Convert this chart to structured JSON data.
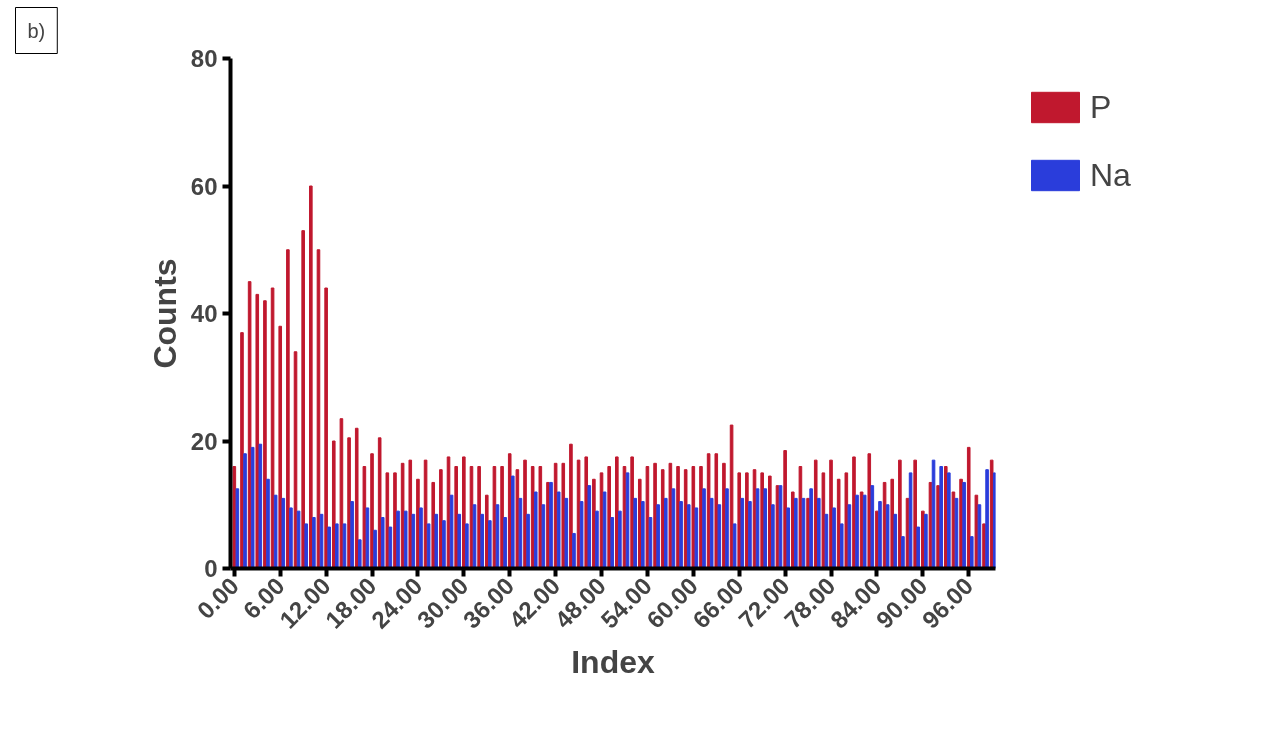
{
  "chart_data": {
    "type": "bar",
    "xlabel": "Index",
    "ylabel": "Counts",
    "annotations": [
      "b)"
    ],
    "x": [
      0,
      1,
      2,
      3,
      4,
      5,
      6,
      7,
      8,
      9,
      10,
      11,
      12,
      13,
      14,
      15,
      16,
      17,
      18,
      19,
      20,
      21,
      22,
      23,
      24,
      25,
      26,
      27,
      28,
      29,
      30,
      31,
      32,
      33,
      34,
      35,
      36,
      37,
      38,
      39,
      40,
      41,
      42,
      43,
      44,
      45,
      46,
      47,
      48,
      49,
      50,
      51,
      52,
      53,
      54,
      55,
      56,
      57,
      58,
      59,
      60,
      61,
      62,
      63,
      64,
      65,
      66,
      67,
      68,
      69,
      70,
      71,
      72,
      73,
      74,
      75,
      76,
      77,
      78,
      79,
      80,
      81,
      82,
      83,
      84,
      85,
      86,
      87,
      88,
      89,
      90,
      91,
      92,
      93,
      94,
      95,
      96,
      97,
      98,
      99
    ],
    "series": [
      {
        "name": "P",
        "color": "#c0182e",
        "values": [
          16,
          37,
          45,
          43,
          42,
          44,
          38,
          50,
          34,
          53,
          60,
          50,
          44,
          20,
          23.5,
          20.5,
          22,
          16,
          18,
          20.5,
          15,
          15,
          16.5,
          17,
          14,
          17,
          13.5,
          15.5,
          17.5,
          16,
          17.5,
          16,
          16,
          11.5,
          16,
          16,
          18,
          15.5,
          17,
          16,
          16,
          13.5,
          16.5,
          16.5,
          19.5,
          17,
          17.5,
          14,
          15,
          16,
          17.5,
          16,
          17.5,
          14,
          16,
          16.5,
          15.5,
          16.5,
          16,
          15.5,
          16,
          16,
          18,
          18,
          16.5,
          22.5,
          15,
          15,
          15.5,
          15,
          14.5,
          13,
          18.5,
          12,
          16,
          11,
          17,
          15,
          17,
          14,
          15,
          17.5,
          12,
          18,
          9,
          13.5,
          14,
          17,
          11,
          17,
          9,
          13.5,
          13,
          16,
          12,
          14,
          19,
          11.5,
          7,
          17
        ]
      },
      {
        "name": "Na",
        "color": "#2a3ddb",
        "values": [
          12.5,
          18,
          19,
          19.5,
          14,
          11.5,
          11,
          9.5,
          9,
          7,
          8,
          8.5,
          6.5,
          7,
          7,
          10.5,
          4.5,
          9.5,
          6,
          8,
          6.5,
          9,
          9,
          8.5,
          9.5,
          7,
          8.5,
          7.5,
          11.5,
          8.5,
          7,
          10,
          8.5,
          7.5,
          10,
          8,
          14.5,
          11,
          8.5,
          12,
          10,
          13.5,
          12,
          11,
          5.5,
          10.5,
          13,
          9,
          12,
          8,
          9,
          15,
          11,
          10.5,
          8,
          10,
          11,
          12.5,
          10.5,
          10,
          9.5,
          12.5,
          11,
          10,
          12.5,
          7,
          11,
          10.5,
          12.5,
          12.5,
          10,
          13,
          9.5,
          11,
          11,
          12.5,
          11,
          8.5,
          9.5,
          7,
          10,
          11.5,
          11.5,
          13,
          10.5,
          10,
          8.5,
          5,
          15,
          6.5,
          8.5,
          17,
          16,
          15,
          11,
          13.5,
          5,
          10,
          15.5,
          15
        ]
      }
    ],
    "xlim": [
      -0.5,
      99.5
    ],
    "xticks": [
      {
        "value": 0,
        "label": "0.00"
      },
      {
        "value": 6,
        "label": "6.00"
      },
      {
        "value": 12,
        "label": "12.00"
      },
      {
        "value": 18,
        "label": "18.00"
      },
      {
        "value": 24,
        "label": "24.00"
      },
      {
        "value": 30,
        "label": "30.00"
      },
      {
        "value": 36,
        "label": "36.00"
      },
      {
        "value": 42,
        "label": "42.00"
      },
      {
        "value": 48,
        "label": "48.00"
      },
      {
        "value": 54,
        "label": "54.00"
      },
      {
        "value": 60,
        "label": "60.00"
      },
      {
        "value": 66,
        "label": "66.00"
      },
      {
        "value": 72,
        "label": "72.00"
      },
      {
        "value": 78,
        "label": "78.00"
      },
      {
        "value": 84,
        "label": "84.00"
      },
      {
        "value": 90,
        "label": "90.00"
      },
      {
        "value": 96,
        "label": "96.00"
      }
    ],
    "ylim": [
      0,
      80
    ],
    "yticks": [
      0,
      20,
      40,
      60,
      80
    ],
    "grid": false,
    "legend": "top right"
  }
}
